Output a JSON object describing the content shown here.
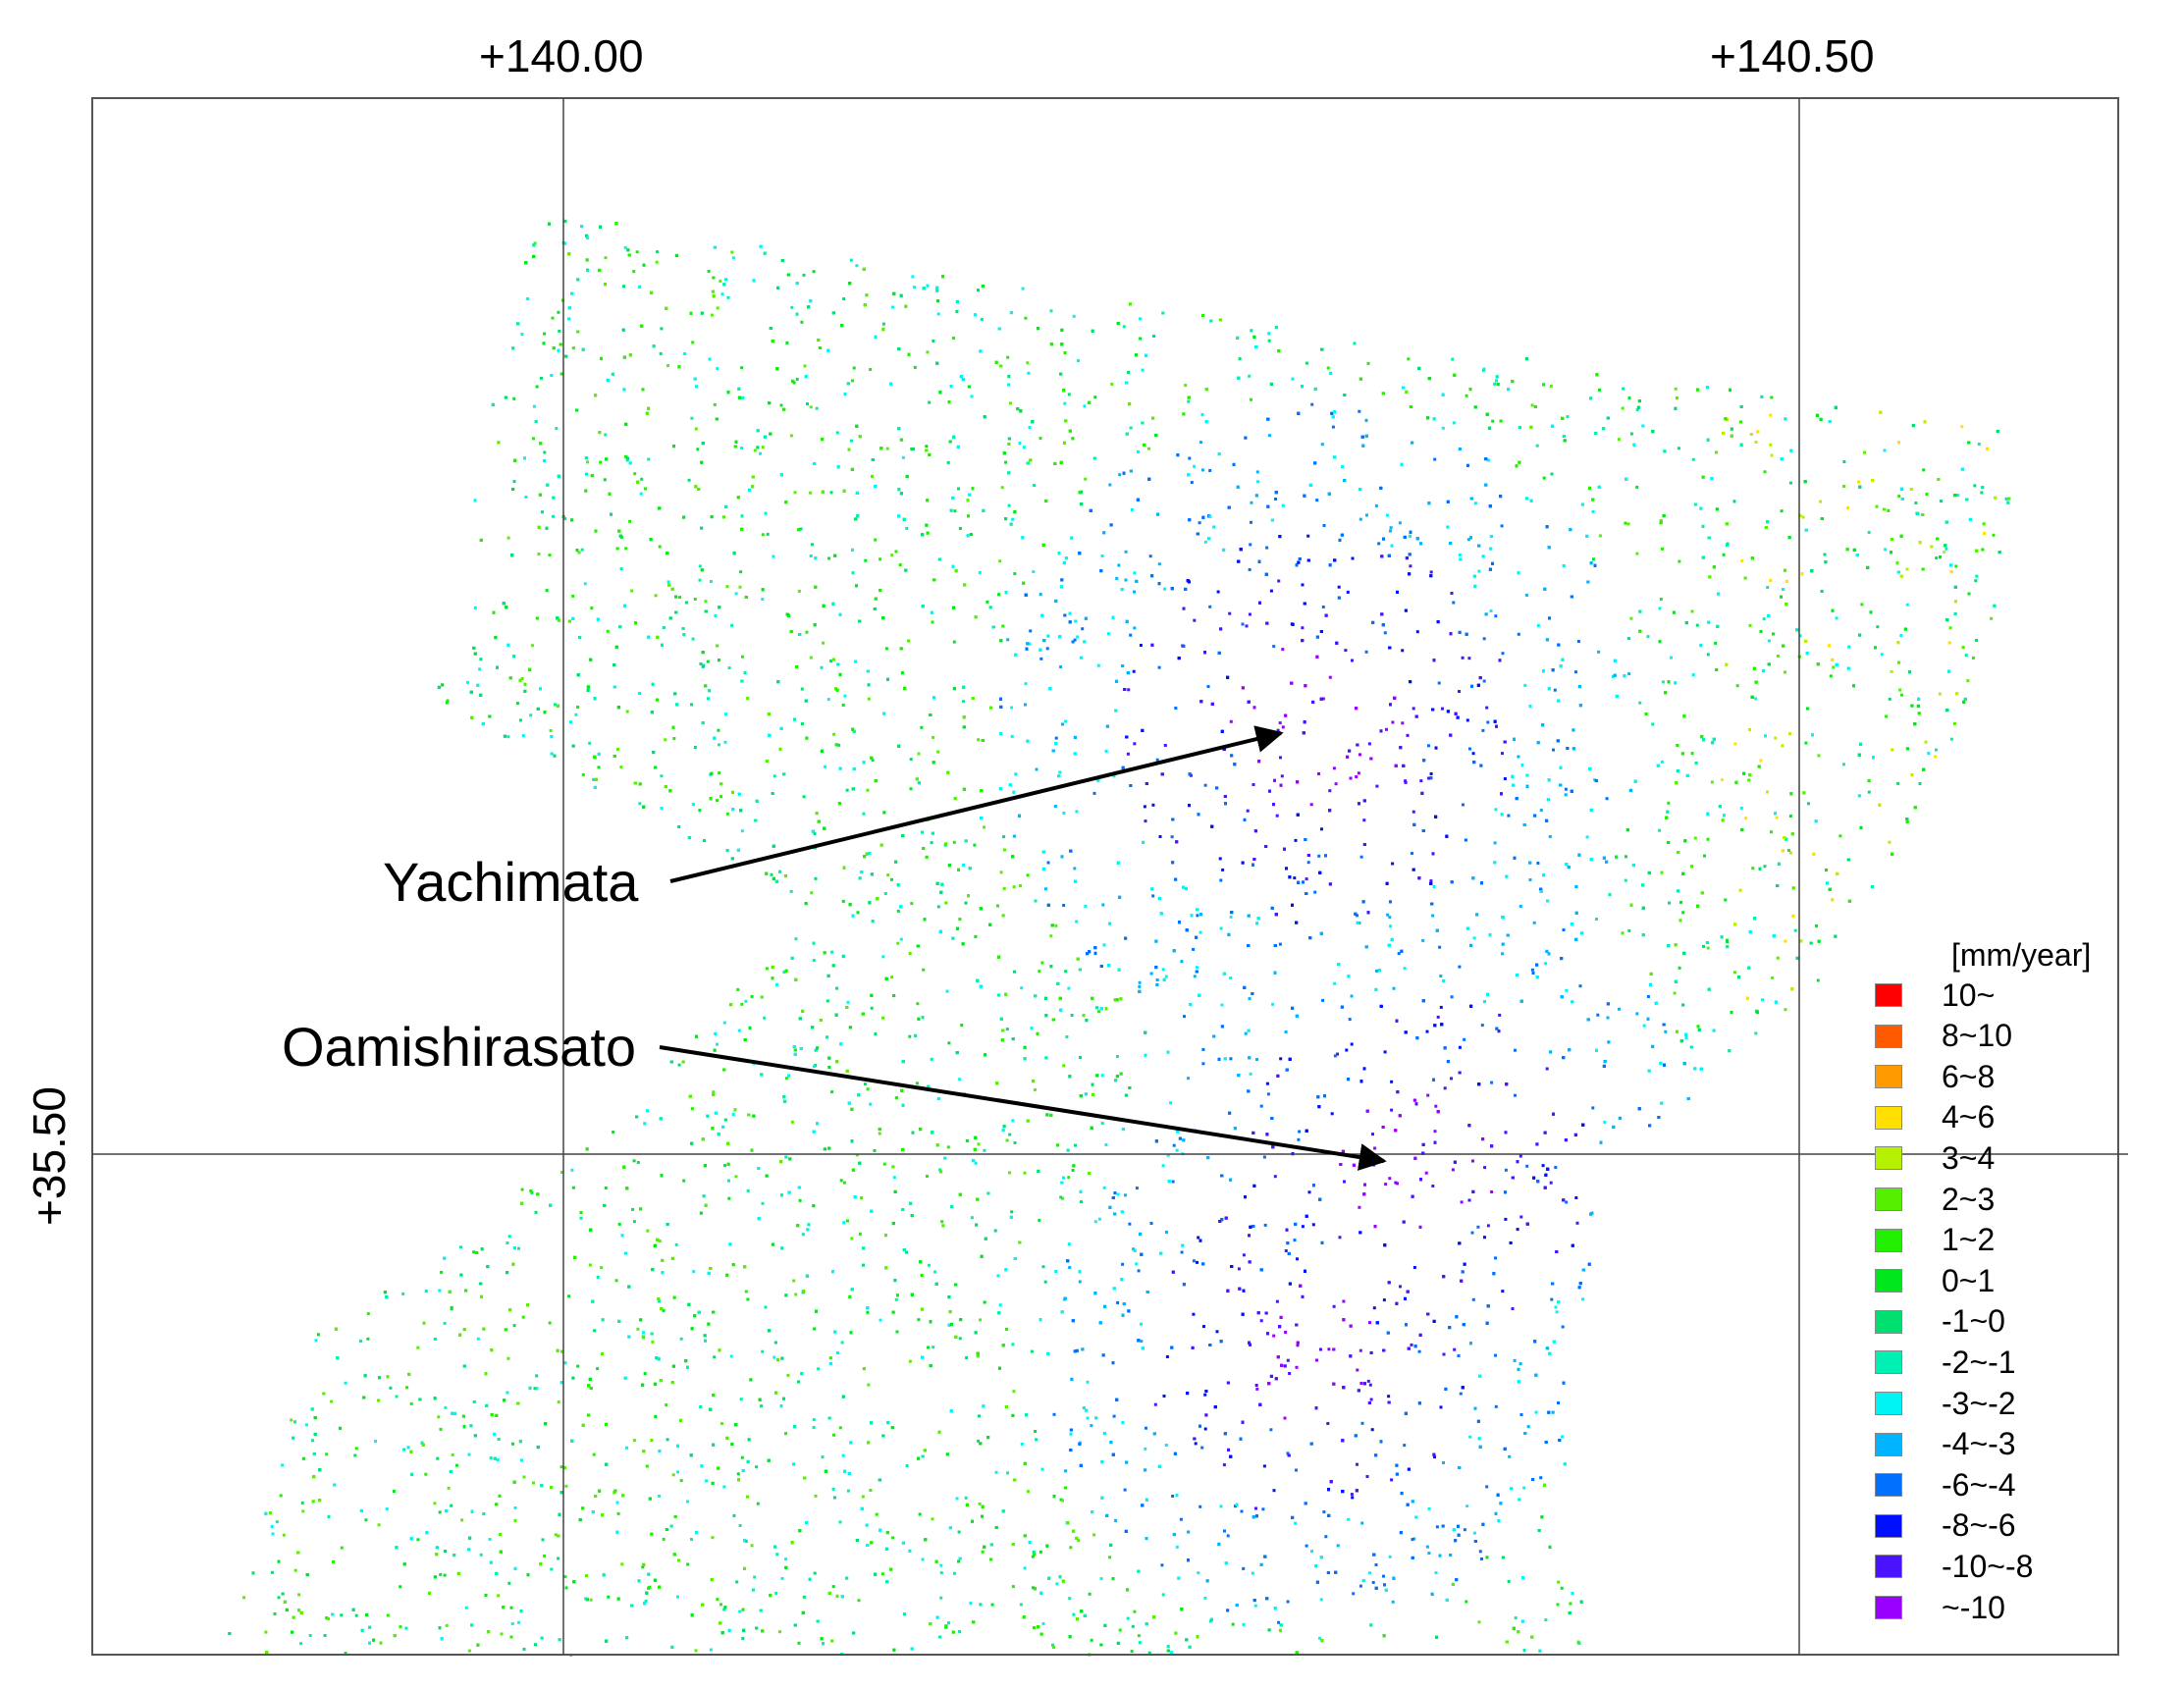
{
  "axes": {
    "lon_labels": [
      "+140.00",
      "+140.50"
    ],
    "lat_labels": [
      "+35.50"
    ]
  },
  "annotations": [
    {
      "name": "Yachimata"
    },
    {
      "name": "Oamishirasato"
    }
  ],
  "legend": {
    "title": "[mm/year]",
    "items": [
      {
        "label": "10~",
        "color": "#ff0000"
      },
      {
        "label": "8~10",
        "color": "#ff5a00"
      },
      {
        "label": "6~8",
        "color": "#ff9a00"
      },
      {
        "label": "4~6",
        "color": "#ffe000"
      },
      {
        "label": "3~4",
        "color": "#b4f000"
      },
      {
        "label": "2~3",
        "color": "#55f000"
      },
      {
        "label": "1~2",
        "color": "#22ee00"
      },
      {
        "label": "0~1",
        "color": "#00e81c"
      },
      {
        "label": "-1~0",
        "color": "#00e070"
      },
      {
        "label": "-2~-1",
        "color": "#00f0b4"
      },
      {
        "label": "-3~-2",
        "color": "#00f4f4"
      },
      {
        "label": "-4~-3",
        "color": "#00b4ff"
      },
      {
        "label": "-6~-4",
        "color": "#0070ff"
      },
      {
        "label": "-8~-6",
        "color": "#0010ff"
      },
      {
        "label": "-10~-8",
        "color": "#4a12ff"
      },
      {
        "label": "~-10",
        "color": "#9a00ff"
      }
    ]
  }
}
